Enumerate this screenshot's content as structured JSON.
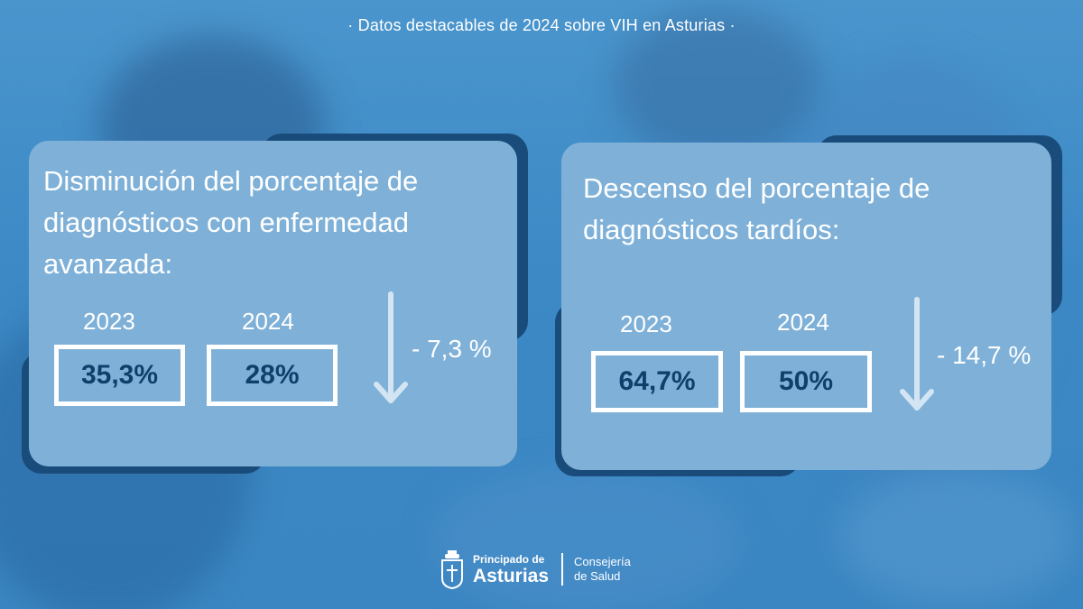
{
  "header": {
    "title": "· Datos destacables de 2024 sobre VIH en Asturias ·"
  },
  "cards": [
    {
      "title_lines": [
        "Disminución del porcentaje de",
        "diagnósticos con enfermedad",
        "avanzada:"
      ],
      "year_a": "2023",
      "value_a": "35,3%",
      "year_b": "2024",
      "value_b": "28%",
      "change": "- 7,3 %"
    },
    {
      "title_lines": [
        "Descenso del porcentaje de",
        "diagnósticos tardíos:"
      ],
      "year_a": "2023",
      "value_a": "64,7%",
      "year_b": "2024",
      "value_b": "50%",
      "change": "- 14,7 %"
    }
  ],
  "footer": {
    "org_line1": "Principado de",
    "org_line2": "Asturias",
    "dept_line1": "Consejería",
    "dept_line2": "de Salud"
  },
  "colors": {
    "card": "#7fb1d8",
    "card_shadow": "#1a4c7b",
    "value_text": "#0f3f6b",
    "arrow": "#d3e5f3"
  }
}
